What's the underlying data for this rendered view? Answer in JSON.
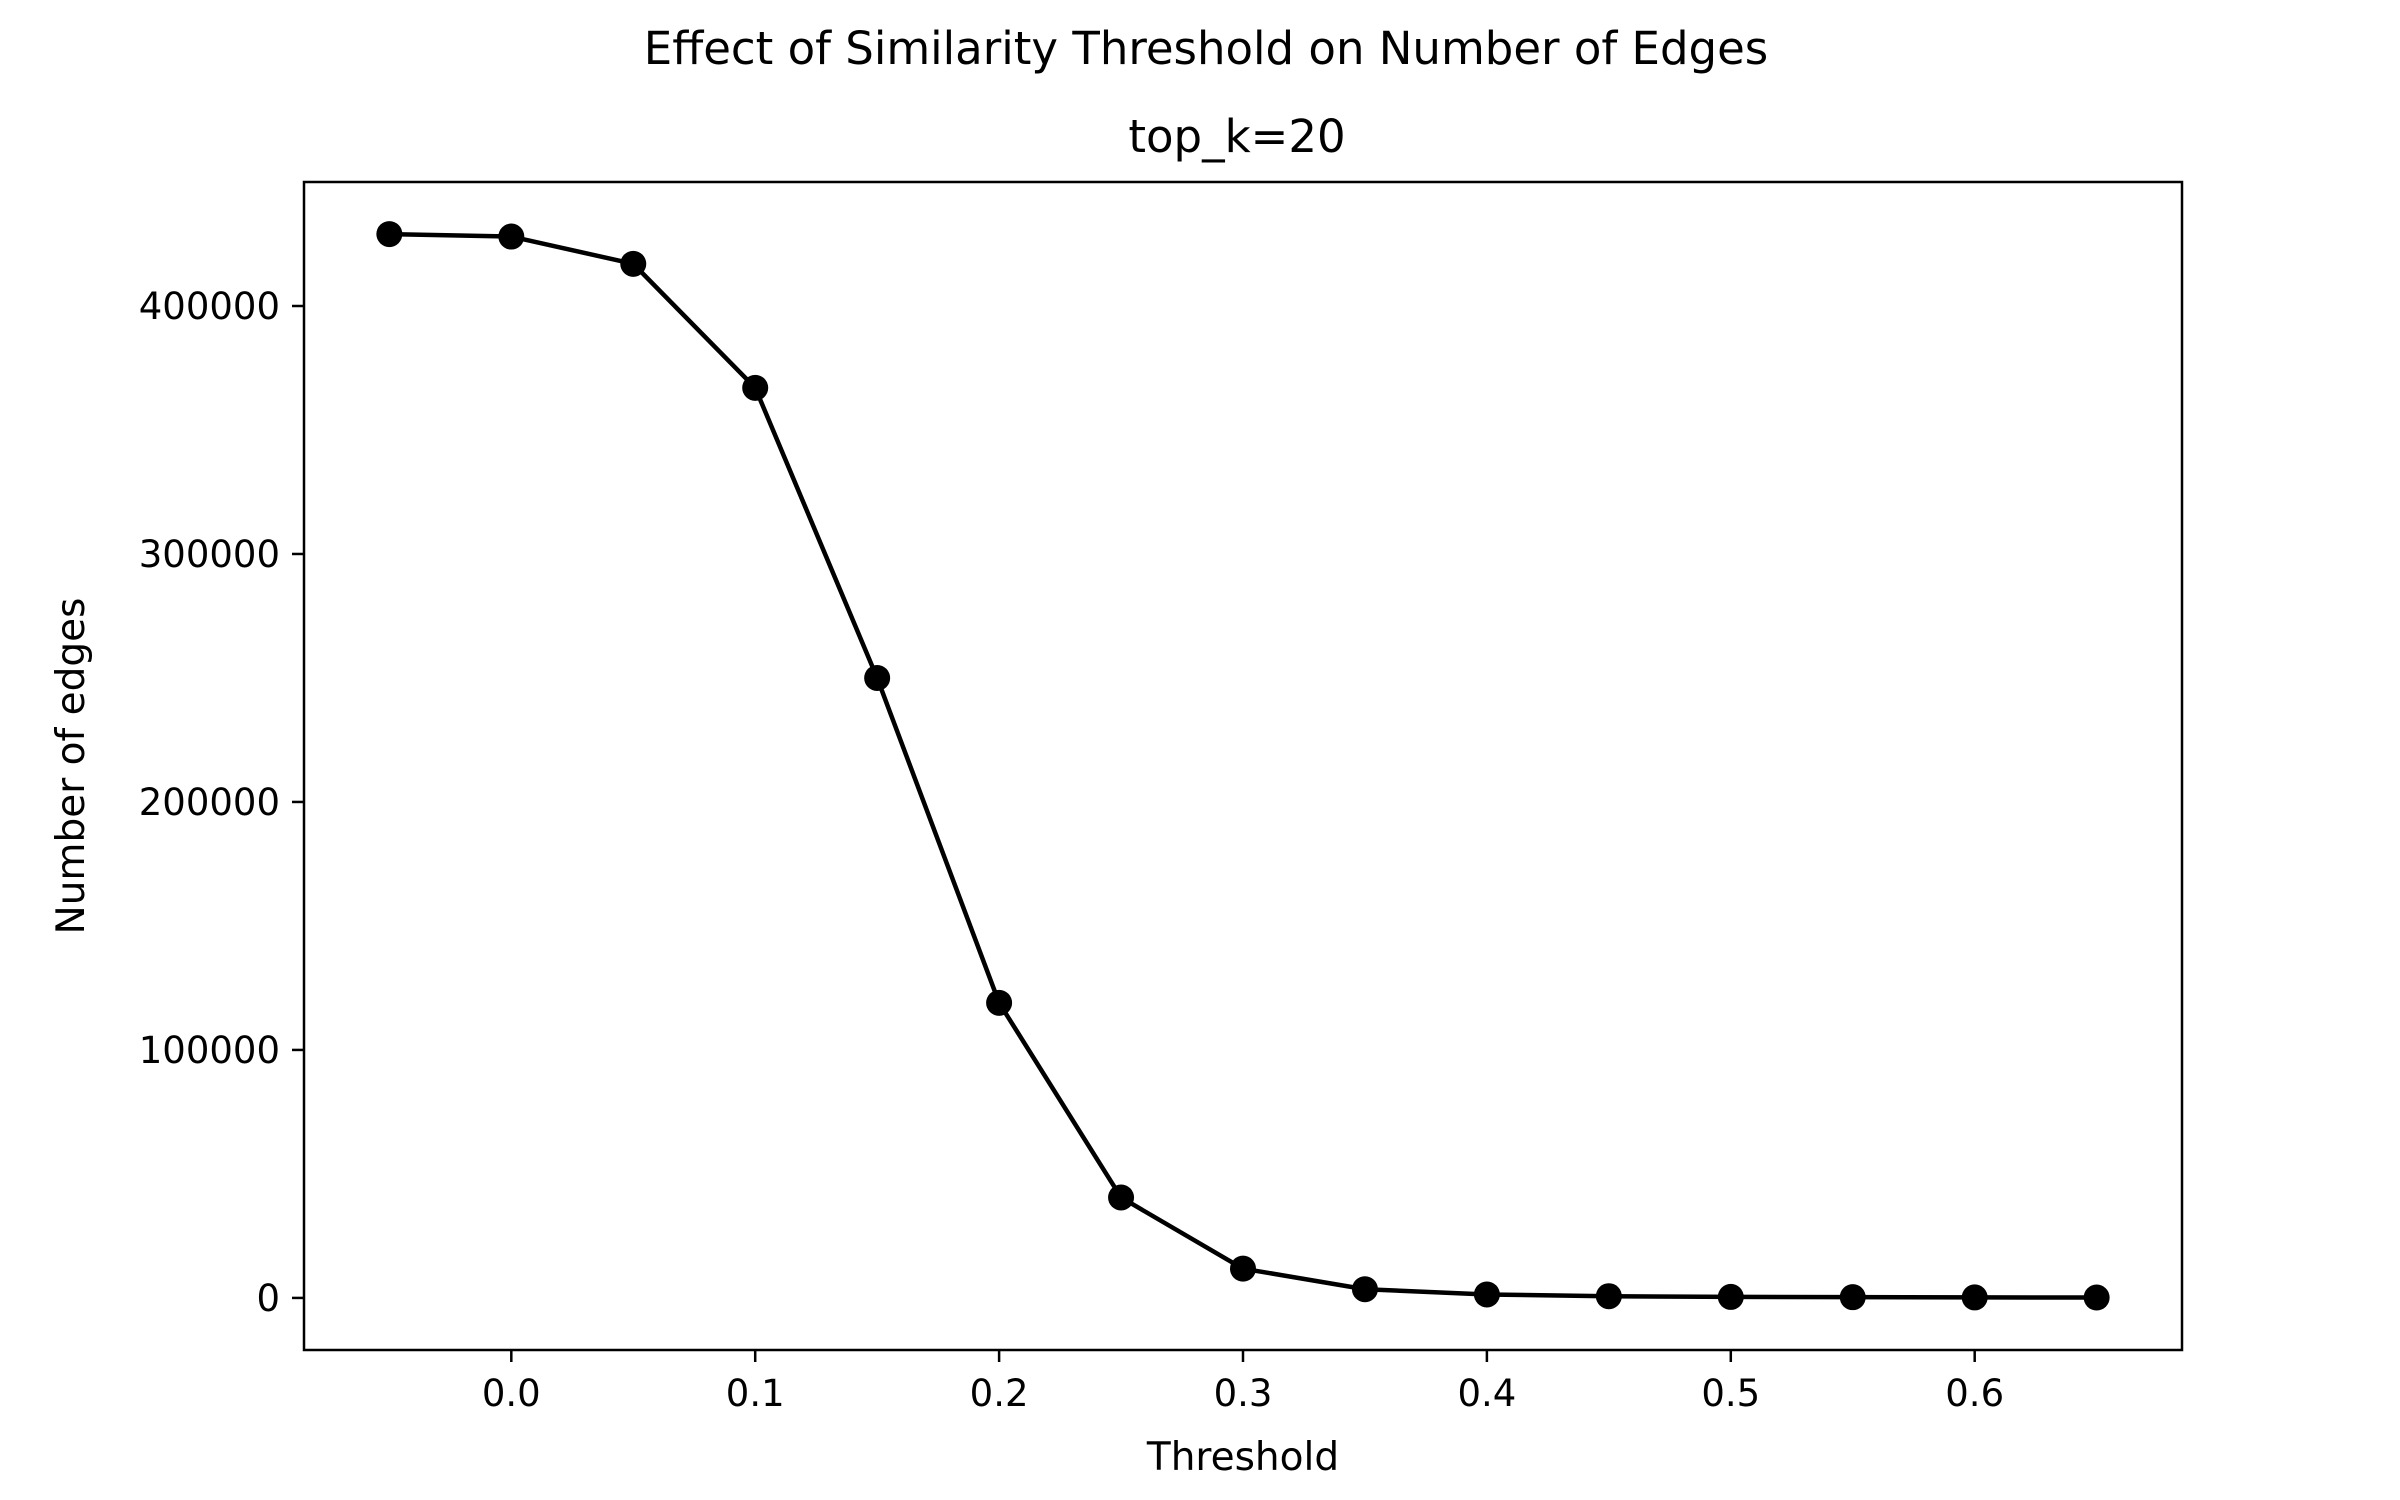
{
  "chart_data": {
    "type": "line",
    "title": "Effect of Similarity Threshold on Number of Edges",
    "subtitle": "top_k=20",
    "xlabel": "Threshold",
    "ylabel": "Number of edges",
    "xlim": [
      -0.085,
      0.685
    ],
    "ylim": [
      -21000,
      450000
    ],
    "x_ticks": [
      0.0,
      0.1,
      0.2,
      0.3,
      0.4,
      0.5,
      0.6
    ],
    "x_tick_labels": [
      "0.0",
      "0.1",
      "0.2",
      "0.3",
      "0.4",
      "0.5",
      "0.6"
    ],
    "y_ticks": [
      0,
      100000,
      200000,
      300000,
      400000
    ],
    "y_tick_labels": [
      "0",
      "100000",
      "200000",
      "300000",
      "400000"
    ],
    "grid": false,
    "series": [
      {
        "color": "#000000",
        "marker": "circle",
        "x": [
          -0.05,
          0.0,
          0.05,
          0.1,
          0.15,
          0.2,
          0.25,
          0.3,
          0.35,
          0.4,
          0.45,
          0.5,
          0.55,
          0.6,
          0.65
        ],
        "y": [
          429000,
          428000,
          417000,
          367000,
          250000,
          119000,
          40500,
          11800,
          3500,
          1400,
          700,
          400,
          300,
          200,
          150
        ]
      }
    ]
  }
}
